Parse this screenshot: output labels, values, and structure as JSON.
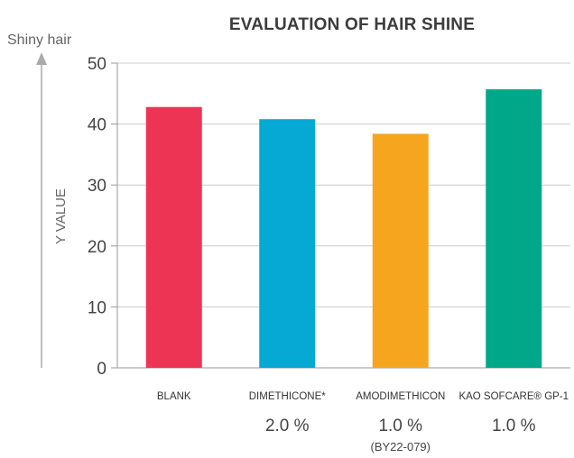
{
  "chart_data": {
    "type": "bar",
    "title": "EVALUATION OF HAIR SHINE",
    "ylabel": "Y VALUE",
    "direction_label": "Shiny hair",
    "ylim": [
      0,
      50
    ],
    "yticks": [
      "0",
      "10",
      "20",
      "30",
      "40",
      "50"
    ],
    "categories": [
      "BLANK",
      "DIMETHICONE*",
      "AMODIMETHICON",
      "KAO SOFCARE® GP-1"
    ],
    "concentrations": [
      "",
      "2.0 %",
      "1.0 %",
      "1.0 %"
    ],
    "notes": [
      "",
      "",
      "(BY22-079)",
      ""
    ],
    "values": [
      42.8,
      40.8,
      38.4,
      45.7
    ],
    "colors": [
      "#ee3455",
      "#05a9d3",
      "#f6a51f",
      "#00a88a"
    ],
    "axis_color": "#999999"
  }
}
